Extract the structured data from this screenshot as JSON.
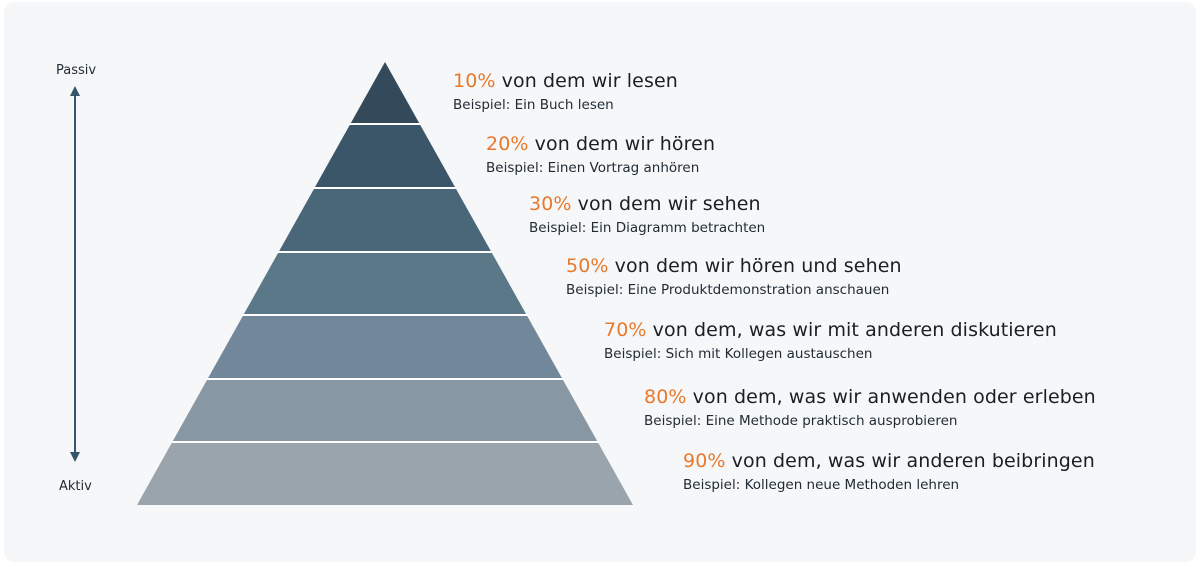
{
  "axis": {
    "top_label": "Passiv",
    "bottom_label": "Aktiv",
    "color": "#34556a"
  },
  "colors": {
    "percent": "#e8792b",
    "layers": [
      "#34495a",
      "#3c5669",
      "#4a6779",
      "#5b7889",
      "#72889a",
      "#8797a3",
      "#9aa4ad"
    ]
  },
  "levels": [
    {
      "percent": "10%",
      "text": "von dem wir lesen",
      "example": "Beispiel: Ein Buch lesen"
    },
    {
      "percent": "20%",
      "text": "von dem wir hören",
      "example": "Beispiel: Einen Vortrag anhören"
    },
    {
      "percent": "30%",
      "text": "von dem wir sehen",
      "example": "Beispiel: Ein Diagramm betrachten"
    },
    {
      "percent": "50%",
      "text": "von dem wir hören und sehen",
      "example": "Beispiel: Eine Produktdemonstration anschauen"
    },
    {
      "percent": "70%",
      "text": "von dem, was wir mit anderen diskutieren",
      "example": "Beispiel: Sich mit Kollegen austauschen"
    },
    {
      "percent": "80%",
      "text": "von dem, was wir anwenden oder erleben",
      "example": "Beispiel: Eine Methode praktisch ausprobieren"
    },
    {
      "percent": "90%",
      "text": "von dem, was wir anderen beibringen",
      "example": "Beispiel: Kollegen neue Methoden lehren"
    }
  ]
}
